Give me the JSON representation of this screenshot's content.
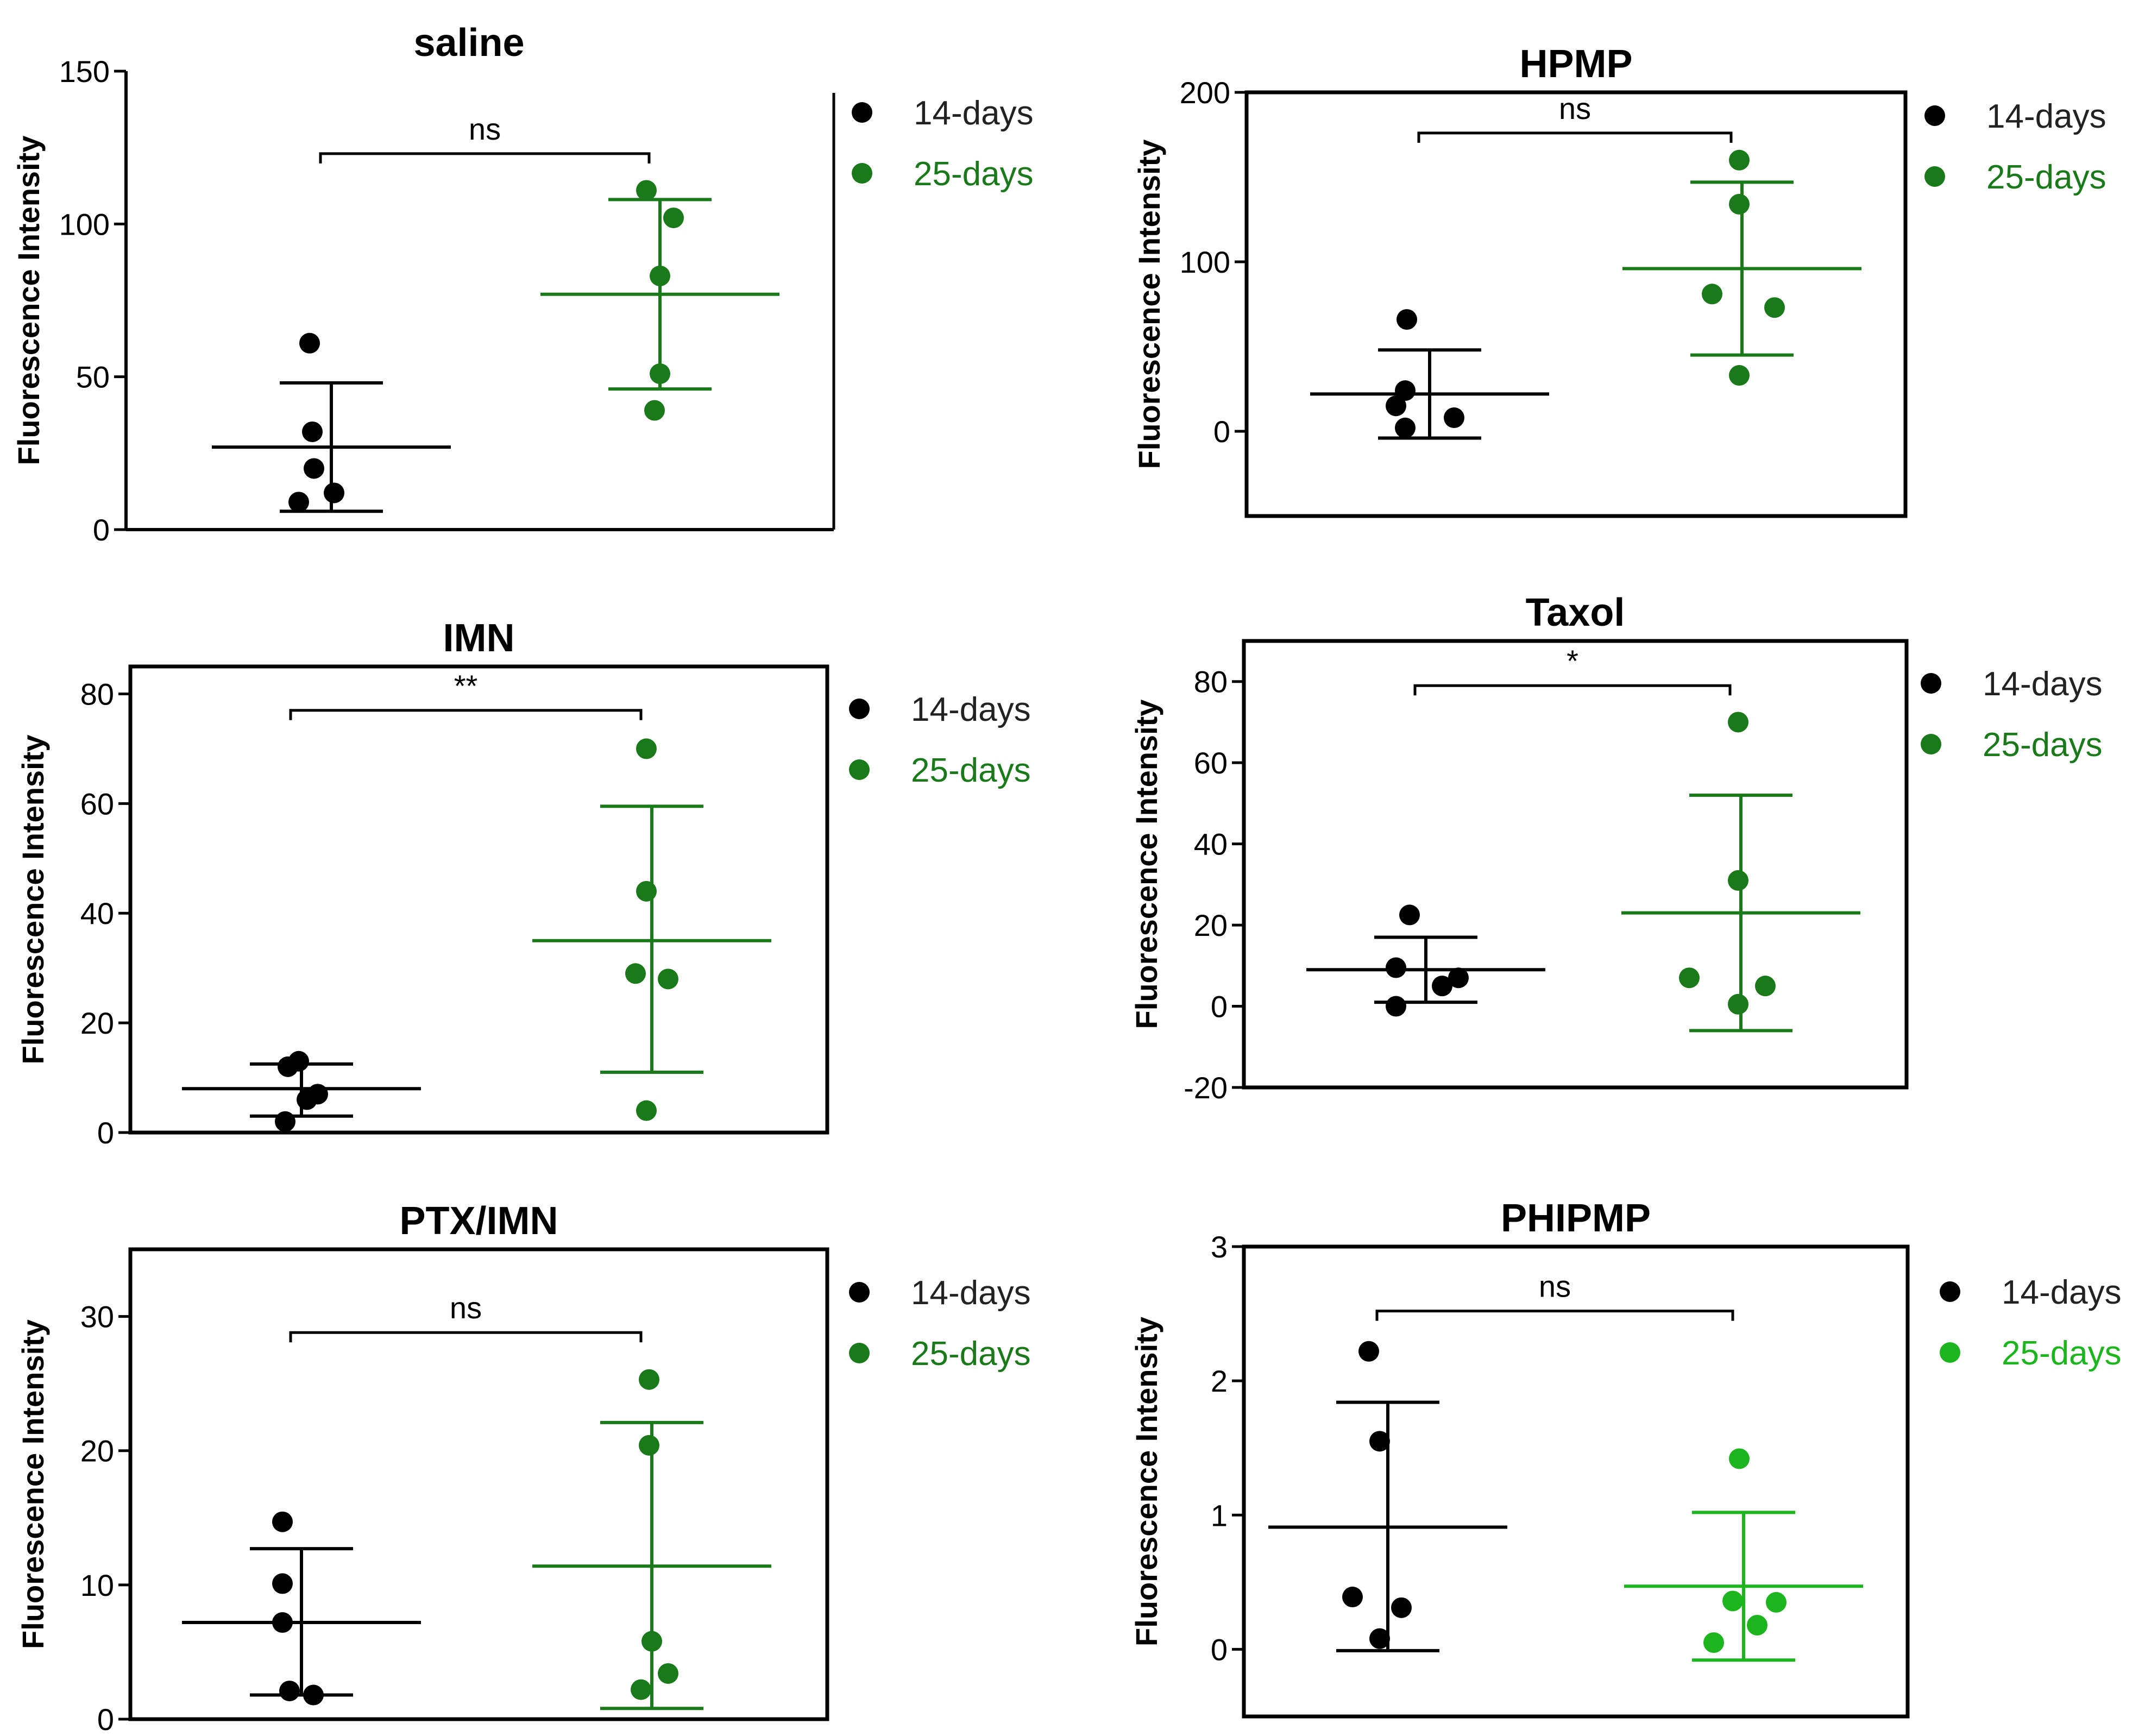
{
  "chart_data": [
    {
      "type": "scatter",
      "title": "saline",
      "ylabel": "Fluorescence Intensity",
      "ylim": [
        0,
        150
      ],
      "yticks": [
        0,
        50,
        100,
        150
      ],
      "frame": "open",
      "categories": [
        "14-days",
        "25-days"
      ],
      "series": [
        {
          "name": "14-days",
          "color": "#000000",
          "values": [
            61,
            32,
            20,
            12,
            9
          ],
          "mean": 27,
          "sd_low": 6,
          "sd_high": 48
        },
        {
          "name": "25-days",
          "color": "#1a7a1a",
          "values": [
            111,
            102,
            83,
            51,
            39
          ],
          "mean": 77,
          "sd_low": 46,
          "sd_high": 108
        }
      ],
      "comparison": {
        "label": "ns",
        "y": 123
      }
    },
    {
      "type": "scatter",
      "title": "HPMP",
      "ylabel": "Fluorescence Intensity",
      "ylim": [
        -50,
        200
      ],
      "yticks": [
        0,
        100,
        200
      ],
      "frame": "box",
      "categories": [
        "14-days",
        "25-days"
      ],
      "series": [
        {
          "name": "14-days",
          "color": "#000000",
          "values": [
            66,
            24,
            15,
            8,
            2
          ],
          "mean": 22,
          "sd_low": -4,
          "sd_high": 48
        },
        {
          "name": "25-days",
          "color": "#1a7a1a",
          "values": [
            160,
            134,
            81,
            73,
            33
          ],
          "mean": 96,
          "sd_low": 45,
          "sd_high": 147
        }
      ],
      "comparison": {
        "label": "ns",
        "y": 176
      }
    },
    {
      "type": "scatter",
      "title": "IMN",
      "ylabel": "Fluorescence Intensity",
      "ylim": [
        0,
        85
      ],
      "yticks": [
        0,
        20,
        40,
        60,
        80
      ],
      "frame": "box",
      "categories": [
        "14-days",
        "25-days"
      ],
      "series": [
        {
          "name": "14-days",
          "color": "#000000",
          "values": [
            13,
            12,
            7,
            6,
            2
          ],
          "mean": 8,
          "sd_low": 3,
          "sd_high": 12.5
        },
        {
          "name": "25-days",
          "color": "#1a7a1a",
          "values": [
            70,
            44,
            29,
            28,
            4
          ],
          "mean": 35,
          "sd_low": 11,
          "sd_high": 59.5
        }
      ],
      "comparison": {
        "label": "**",
        "y": 77
      }
    },
    {
      "type": "scatter",
      "title": "Taxol",
      "ylabel": "Fluorescence Intensity",
      "ylim": [
        -20,
        90
      ],
      "yticks": [
        -20,
        0,
        20,
        40,
        60,
        80
      ],
      "frame": "box",
      "categories": [
        "14-days",
        "25-days"
      ],
      "series": [
        {
          "name": "14-days",
          "color": "#000000",
          "values": [
            22.5,
            9.5,
            7,
            5,
            0
          ],
          "mean": 9,
          "sd_low": 1,
          "sd_high": 17
        },
        {
          "name": "25-days",
          "color": "#1a7a1a",
          "values": [
            70,
            31,
            7,
            5,
            0.5
          ],
          "mean": 23,
          "sd_low": -6,
          "sd_high": 52
        }
      ],
      "comparison": {
        "label": "*",
        "y": 79
      }
    },
    {
      "type": "scatter",
      "title": "PTX/IMN",
      "ylabel": "Fluorescence Intensity",
      "ylim": [
        0,
        35
      ],
      "yticks": [
        0,
        10,
        20,
        30
      ],
      "frame": "box",
      "categories": [
        "14-days",
        "25-days"
      ],
      "series": [
        {
          "name": "14-days",
          "color": "#000000",
          "values": [
            14.7,
            10.1,
            7.2,
            2.1,
            1.8
          ],
          "mean": 7.2,
          "sd_low": 1.8,
          "sd_high": 12.7
        },
        {
          "name": "25-days",
          "color": "#1a7a1a",
          "values": [
            25.3,
            20.4,
            5.8,
            3.4,
            2.2
          ],
          "mean": 11.4,
          "sd_low": 0.8,
          "sd_high": 22.1
        }
      ],
      "comparison": {
        "label": "ns",
        "y": 28.8
      }
    },
    {
      "type": "scatter",
      "title": "PHIPMP",
      "ylabel": "Fluorescence Intensity",
      "ylim": [
        -0.5,
        3
      ],
      "yticks": [
        0,
        1,
        2,
        3
      ],
      "frame": "box",
      "categories": [
        "14-days",
        "25-days"
      ],
      "series": [
        {
          "name": "14-days",
          "color": "#000000",
          "values": [
            2.22,
            1.55,
            0.39,
            0.31,
            0.08
          ],
          "mean": 0.91,
          "sd_low": -0.01,
          "sd_high": 1.84
        },
        {
          "name": "25-days",
          "color": "#1db51d",
          "values": [
            1.42,
            0.36,
            0.35,
            0.18,
            0.05
          ],
          "mean": 0.47,
          "sd_low": -0.08,
          "sd_high": 1.02
        }
      ],
      "comparison": {
        "label": "ns",
        "y": 2.52
      }
    }
  ]
}
